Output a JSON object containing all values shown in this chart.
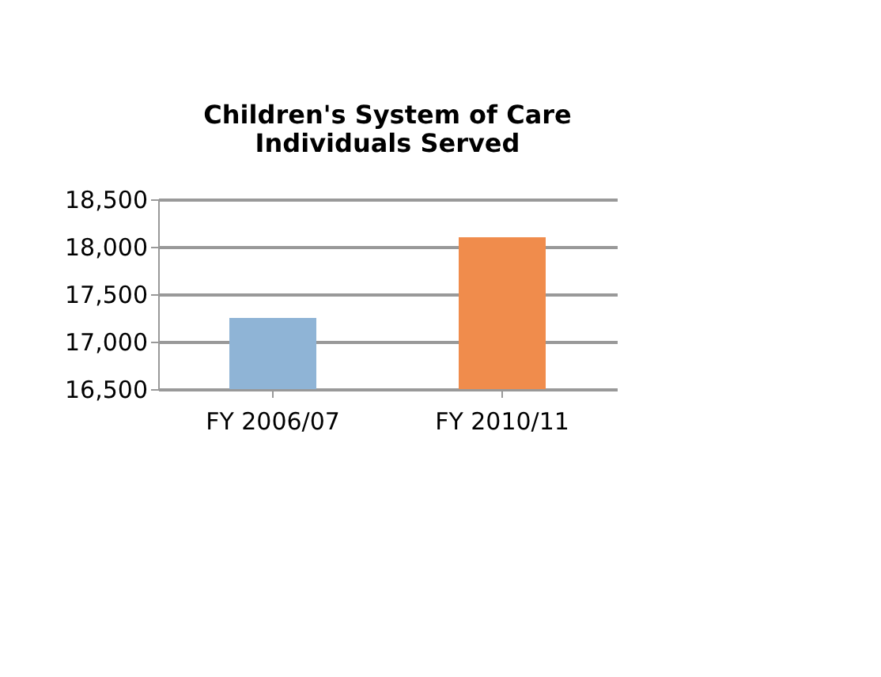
{
  "chart_data": {
    "type": "bar",
    "title": "Children's System of Care Individuals Served",
    "categories": [
      "FY 2006/07",
      "FY 2010/11"
    ],
    "values": [
      17250,
      18100
    ],
    "colors": [
      "#8fb4d6",
      "#f08c4c"
    ],
    "ylim": [
      16500,
      18500
    ],
    "yticks": [
      {
        "value": 16500,
        "label": "16,500"
      },
      {
        "value": 17000,
        "label": "17,000"
      },
      {
        "value": 17500,
        "label": "17,500"
      },
      {
        "value": 18000,
        "label": "18,000"
      },
      {
        "value": 18500,
        "label": "18,500"
      }
    ],
    "grid": "y"
  }
}
